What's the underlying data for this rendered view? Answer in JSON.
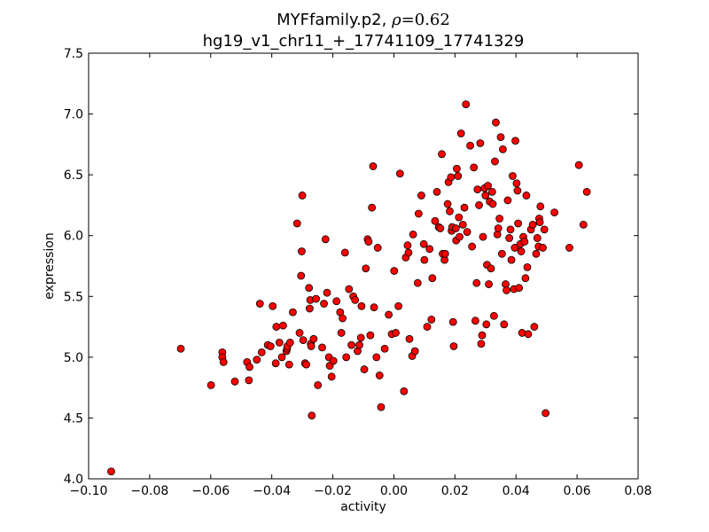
{
  "chart_data": {
    "type": "scatter",
    "title": "MYFfamily.p2, ",
    "title_rho_symbol": "ρ",
    "title_rho_value": "=0.62",
    "subtitle": "hg19_v1_chr11_+_17741109_17741329",
    "xlabel": "activity",
    "ylabel": "expression",
    "xlim": [
      -0.1,
      0.08
    ],
    "ylim": [
      4.0,
      7.5
    ],
    "xticks": [
      -0.1,
      -0.08,
      -0.06,
      -0.04,
      -0.02,
      0.0,
      0.02,
      0.04,
      0.06,
      0.08
    ],
    "xtick_labels": [
      "−0.10",
      "−0.08",
      "−0.06",
      "−0.04",
      "−0.02",
      "0.00",
      "0.02",
      "0.04",
      "0.06",
      "0.08"
    ],
    "yticks": [
      4.0,
      4.5,
      5.0,
      5.5,
      6.0,
      6.5,
      7.0,
      7.5
    ],
    "ytick_labels": [
      "4.0",
      "4.5",
      "5.0",
      "5.5",
      "6.0",
      "6.5",
      "7.0",
      "7.5"
    ],
    "grid": false,
    "marker_color": "#ff0000",
    "marker_edge": "#000000",
    "points": [
      [
        -0.0926,
        4.06
      ],
      [
        -0.0698,
        5.07
      ],
      [
        -0.0599,
        4.77
      ],
      [
        -0.0562,
        5.04
      ],
      [
        -0.0562,
        5.0
      ],
      [
        -0.0558,
        4.96
      ],
      [
        -0.0521,
        4.8
      ],
      [
        -0.0481,
        4.96
      ],
      [
        -0.0475,
        4.81
      ],
      [
        -0.0473,
        4.92
      ],
      [
        -0.0449,
        4.98
      ],
      [
        -0.0439,
        5.44
      ],
      [
        -0.0433,
        5.04
      ],
      [
        -0.0413,
        5.1
      ],
      [
        -0.0404,
        5.09
      ],
      [
        -0.0397,
        5.42
      ],
      [
        -0.0387,
        4.95
      ],
      [
        -0.0385,
        5.25
      ],
      [
        -0.0375,
        5.12
      ],
      [
        -0.0367,
        5.0
      ],
      [
        -0.0363,
        5.26
      ],
      [
        -0.0352,
        5.05
      ],
      [
        -0.035,
        5.07
      ],
      [
        -0.0349,
        5.09
      ],
      [
        -0.0343,
        4.94
      ],
      [
        -0.034,
        5.12
      ],
      [
        -0.0331,
        5.37
      ],
      [
        -0.0317,
        6.1
      ],
      [
        -0.0309,
        5.2
      ],
      [
        -0.0304,
        5.67
      ],
      [
        -0.0302,
        5.87
      ],
      [
        -0.03,
        6.33
      ],
      [
        -0.0297,
        5.14
      ],
      [
        -0.0291,
        4.95
      ],
      [
        -0.0287,
        4.94
      ],
      [
        -0.0278,
        5.57
      ],
      [
        -0.0276,
        5.4
      ],
      [
        -0.0274,
        5.47
      ],
      [
        -0.0272,
        5.11
      ],
      [
        -0.0271,
        5.09
      ],
      [
        -0.0269,
        4.52
      ],
      [
        -0.0263,
        5.15
      ],
      [
        -0.0255,
        5.48
      ],
      [
        -0.0249,
        4.77
      ],
      [
        -0.0235,
        5.08
      ],
      [
        -0.0229,
        5.44
      ],
      [
        -0.0224,
        5.97
      ],
      [
        -0.0219,
        5.53
      ],
      [
        -0.0213,
        5.0
      ],
      [
        -0.021,
        4.93
      ],
      [
        -0.0204,
        4.84
      ],
      [
        -0.0198,
        4.97
      ],
      [
        -0.0188,
        5.46
      ],
      [
        -0.0176,
        5.37
      ],
      [
        -0.0172,
        5.2
      ],
      [
        -0.0168,
        5.32
      ],
      [
        -0.016,
        5.86
      ],
      [
        -0.0156,
        5.0
      ],
      [
        -0.0147,
        5.56
      ],
      [
        -0.0139,
        5.1
      ],
      [
        -0.0133,
        5.5
      ],
      [
        -0.0127,
        5.47
      ],
      [
        -0.0119,
        5.05
      ],
      [
        -0.0113,
        5.1
      ],
      [
        -0.0108,
        5.16
      ],
      [
        -0.0106,
        5.42
      ],
      [
        -0.0097,
        4.9
      ],
      [
        -0.0092,
        5.73
      ],
      [
        -0.0086,
        5.97
      ],
      [
        -0.0083,
        5.95
      ],
      [
        -0.0077,
        5.18
      ],
      [
        -0.0072,
        6.23
      ],
      [
        -0.0068,
        6.57
      ],
      [
        -0.0065,
        5.41
      ],
      [
        -0.0057,
        5.0
      ],
      [
        -0.0053,
        5.9
      ],
      [
        -0.0047,
        4.85
      ],
      [
        -0.0042,
        4.59
      ],
      [
        -0.003,
        5.07
      ],
      [
        -0.0017,
        5.35
      ],
      [
        -0.0007,
        5.19
      ],
      [
        0.0001,
        5.71
      ],
      [
        0.0006,
        5.2
      ],
      [
        0.0015,
        5.42
      ],
      [
        0.002,
        6.51
      ],
      [
        0.0033,
        4.72
      ],
      [
        0.0039,
        5.82
      ],
      [
        0.0045,
        5.92
      ],
      [
        0.0048,
        5.86
      ],
      [
        0.0051,
        5.15
      ],
      [
        0.006,
        5.01
      ],
      [
        0.0063,
        6.01
      ],
      [
        0.0069,
        5.05
      ],
      [
        0.0078,
        5.61
      ],
      [
        0.0081,
        6.18
      ],
      [
        0.009,
        6.33
      ],
      [
        0.0098,
        5.93
      ],
      [
        0.01,
        5.8
      ],
      [
        0.0109,
        5.25
      ],
      [
        0.0117,
        5.89
      ],
      [
        0.0123,
        5.31
      ],
      [
        0.0126,
        5.65
      ],
      [
        0.0135,
        6.12
      ],
      [
        0.0141,
        6.36
      ],
      [
        0.0147,
        6.07
      ],
      [
        0.0152,
        6.06
      ],
      [
        0.0157,
        6.67
      ],
      [
        0.016,
        5.85
      ],
      [
        0.0166,
        5.8
      ],
      [
        0.0168,
        5.85
      ],
      [
        0.0176,
        6.26
      ],
      [
        0.0179,
        6.44
      ],
      [
        0.0183,
        6.2
      ],
      [
        0.0187,
        6.48
      ],
      [
        0.0189,
        6.04
      ],
      [
        0.0191,
        6.07
      ],
      [
        0.0194,
        5.29
      ],
      [
        0.0196,
        5.09
      ],
      [
        0.0203,
        6.06
      ],
      [
        0.0204,
        5.96
      ],
      [
        0.0206,
        6.55
      ],
      [
        0.021,
        6.49
      ],
      [
        0.0213,
        6.15
      ],
      [
        0.0215,
        5.99
      ],
      [
        0.022,
        6.84
      ],
      [
        0.0226,
        6.09
      ],
      [
        0.0231,
        6.23
      ],
      [
        0.0236,
        7.08
      ],
      [
        0.024,
        6.03
      ],
      [
        0.025,
        6.74
      ],
      [
        0.0256,
        5.91
      ],
      [
        0.0262,
        6.56
      ],
      [
        0.0267,
        5.3
      ],
      [
        0.0271,
        5.61
      ],
      [
        0.0274,
        6.38
      ],
      [
        0.0279,
        6.25
      ],
      [
        0.0283,
        6.76
      ],
      [
        0.0286,
        5.11
      ],
      [
        0.0289,
        5.18
      ],
      [
        0.0292,
        5.99
      ],
      [
        0.0297,
        6.39
      ],
      [
        0.03,
        6.33
      ],
      [
        0.0303,
        5.27
      ],
      [
        0.0305,
        5.76
      ],
      [
        0.0308,
        6.41
      ],
      [
        0.0311,
        5.6
      ],
      [
        0.0314,
        6.28
      ],
      [
        0.0318,
        5.73
      ],
      [
        0.0322,
        6.36
      ],
      [
        0.0324,
        6.26
      ],
      [
        0.0328,
        5.34
      ],
      [
        0.0331,
        6.61
      ],
      [
        0.0334,
        6.93
      ],
      [
        0.0339,
        6.01
      ],
      [
        0.0342,
        6.06
      ],
      [
        0.0346,
        6.14
      ],
      [
        0.035,
        6.81
      ],
      [
        0.0354,
        5.85
      ],
      [
        0.0357,
        6.71
      ],
      [
        0.0361,
        5.27
      ],
      [
        0.0366,
        5.6
      ],
      [
        0.0369,
        5.55
      ],
      [
        0.0373,
        6.29
      ],
      [
        0.0378,
        5.98
      ],
      [
        0.0382,
        6.05
      ],
      [
        0.0385,
        5.8
      ],
      [
        0.0389,
        6.49
      ],
      [
        0.0393,
        5.56
      ],
      [
        0.0396,
        5.9
      ],
      [
        0.0398,
        6.78
      ],
      [
        0.0402,
        6.43
      ],
      [
        0.0405,
        6.37
      ],
      [
        0.0407,
        6.1
      ],
      [
        0.041,
        5.57
      ],
      [
        0.0414,
        5.93
      ],
      [
        0.0417,
        5.87
      ],
      [
        0.042,
        5.2
      ],
      [
        0.0424,
        5.99
      ],
      [
        0.0428,
        5.95
      ],
      [
        0.0431,
        5.65
      ],
      [
        0.0434,
        6.33
      ],
      [
        0.0437,
        5.74
      ],
      [
        0.044,
        5.19
      ],
      [
        0.0449,
        6.05
      ],
      [
        0.0455,
        6.09
      ],
      [
        0.046,
        5.25
      ],
      [
        0.0466,
        5.85
      ],
      [
        0.047,
        5.98
      ],
      [
        0.0474,
        5.91
      ],
      [
        0.0476,
        6.14
      ],
      [
        0.0478,
        6.11
      ],
      [
        0.048,
        6.24
      ],
      [
        0.0488,
        5.9
      ],
      [
        0.0493,
        6.05
      ],
      [
        0.0497,
        4.54
      ],
      [
        0.0526,
        6.19
      ],
      [
        0.0575,
        5.9
      ],
      [
        0.0606,
        6.58
      ],
      [
        0.0621,
        6.09
      ],
      [
        0.0632,
        6.36
      ]
    ]
  }
}
